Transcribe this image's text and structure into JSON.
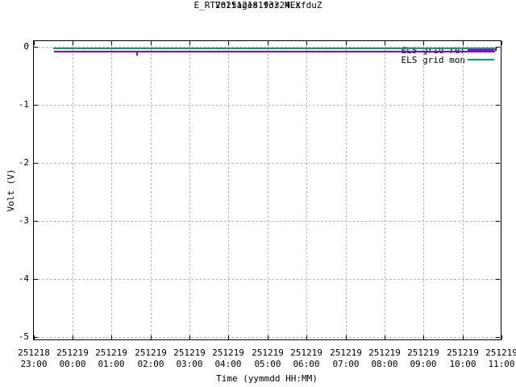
{
  "chart_data": {
    "type": "line",
    "title": "Voltages for MEX",
    "subtitle": "E_RT20251218193324.sfduZ",
    "xlabel": "Time (yymmdd HH:MM)",
    "ylabel": "Volt (V)",
    "grid": true,
    "legend_position": "top-right-inside",
    "xlim_hours": [
      0,
      12
    ],
    "ylim": [
      -5.06,
      0.104
    ],
    "x_ticks": [
      {
        "date": "251218",
        "time": "23:00",
        "h": 0
      },
      {
        "date": "251219",
        "time": "00:00",
        "h": 1
      },
      {
        "date": "251219",
        "time": "01:00",
        "h": 2
      },
      {
        "date": "251219",
        "time": "02:00",
        "h": 3
      },
      {
        "date": "251219",
        "time": "03:00",
        "h": 4
      },
      {
        "date": "251219",
        "time": "04:00",
        "h": 5
      },
      {
        "date": "251219",
        "time": "05:00",
        "h": 6
      },
      {
        "date": "251219",
        "time": "06:00",
        "h": 7
      },
      {
        "date": "251219",
        "time": "07:00",
        "h": 8
      },
      {
        "date": "251219",
        "time": "08:00",
        "h": 9
      },
      {
        "date": "251219",
        "time": "09:00",
        "h": 10
      },
      {
        "date": "251219",
        "time": "10:00",
        "h": 11
      },
      {
        "date": "251219",
        "time": "11:00",
        "h": 12
      }
    ],
    "y_ticks": [
      {
        "label": "0",
        "value": 0
      },
      {
        "label": "-1",
        "value": -1
      },
      {
        "label": "-2",
        "value": -2
      },
      {
        "label": "-3",
        "value": -3
      },
      {
        "label": "-4",
        "value": -4
      },
      {
        "label": "-5",
        "value": -5
      }
    ],
    "series": [
      {
        "name": "ELS grid ref",
        "color": "#9400d3",
        "line_width": 2,
        "start_h": 0.52,
        "end_h": 11.83,
        "value_v": -0.08,
        "spike": {
          "at_h": 2.66,
          "to_v": -0.145
        }
      },
      {
        "name": "ELS grid mon",
        "color": "#00a080",
        "line_width": 2,
        "start_h": 0.5,
        "end_h": 11.85,
        "value_v": -0.03
      }
    ]
  },
  "colors": {
    "background": "#ffffff",
    "border": "#000000",
    "grid": "#b8b8b8",
    "text": "#000000"
  }
}
